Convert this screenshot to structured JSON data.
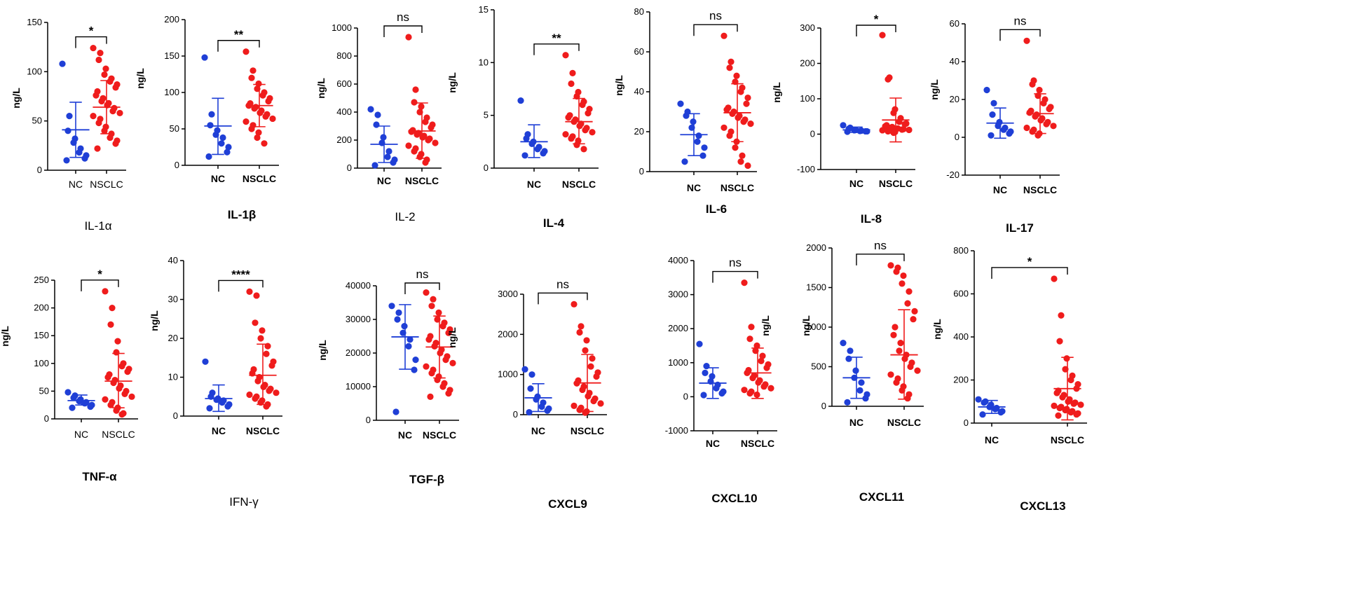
{
  "figure": {
    "colors": {
      "NC": "#1f3fd6",
      "NSCLC": "#ef1c1c",
      "axis": "#000000",
      "bracket": "#000000"
    }
  },
  "chart_data": [
    {
      "type": "scatter",
      "title": "IL-1α",
      "ylabel": "ng/L",
      "ylim": [
        0,
        150
      ],
      "yticks": [
        0,
        50,
        100,
        150
      ],
      "categories": [
        "NC",
        "NSCLC"
      ],
      "significance": "*",
      "series": [
        {
          "name": "NC",
          "values": [
            108,
            55,
            40,
            32,
            28,
            22,
            18,
            15,
            12,
            10
          ],
          "mean": 41,
          "sd_low": 13,
          "sd_high": 69
        },
        {
          "name": "NSCLC",
          "values": [
            124,
            119,
            112,
            103,
            97,
            93,
            90,
            87,
            84,
            80,
            76,
            73,
            70,
            68,
            66,
            63,
            60,
            58,
            55,
            52,
            48,
            44,
            40,
            37,
            33,
            30,
            27,
            22
          ],
          "mean": 64,
          "sd_low": 37,
          "sd_high": 91
        }
      ]
    },
    {
      "type": "scatter",
      "title": "IL-1β",
      "ylabel": "ng/L",
      "ylim": [
        0,
        200
      ],
      "yticks": [
        0,
        50,
        100,
        150,
        200
      ],
      "categories": [
        "NC",
        "NSCLC"
      ],
      "significance": "**",
      "series": [
        {
          "name": "NC",
          "values": [
            148,
            70,
            55,
            48,
            42,
            38,
            30,
            25,
            18,
            12
          ],
          "mean": 54,
          "sd_low": 15,
          "sd_high": 92
        },
        {
          "name": "NSCLC",
          "values": [
            156,
            130,
            120,
            112,
            105,
            100,
            96,
            92,
            88,
            85,
            82,
            80,
            78,
            75,
            72,
            70,
            67,
            64,
            60,
            55,
            50,
            45,
            38,
            30
          ],
          "mean": 82,
          "sd_low": 53,
          "sd_high": 111
        }
      ]
    },
    {
      "type": "scatter",
      "title": "IL-2",
      "ylabel": "ng/L",
      "ylim": [
        0,
        1000
      ],
      "yticks": [
        0,
        200,
        400,
        600,
        800,
        1000
      ],
      "categories": [
        "NC",
        "NSCLC"
      ],
      "significance": "ns",
      "series": [
        {
          "name": "NC",
          "values": [
            420,
            380,
            310,
            220,
            180,
            120,
            80,
            60,
            40,
            20
          ],
          "mean": 170,
          "sd_low": 40,
          "sd_high": 300
        },
        {
          "name": "NSCLC",
          "values": [
            935,
            560,
            470,
            440,
            400,
            360,
            330,
            310,
            290,
            270,
            260,
            250,
            240,
            230,
            220,
            210,
            200,
            180,
            160,
            140,
            120,
            100,
            80,
            60,
            40
          ],
          "mean": 265,
          "sd_low": 70,
          "sd_high": 465
        }
      ]
    },
    {
      "type": "scatter",
      "title": "IL-4",
      "ylabel": "ng/L",
      "ylim": [
        0,
        15
      ],
      "yticks": [
        0,
        5,
        10,
        15
      ],
      "categories": [
        "NC",
        "NSCLC"
      ],
      "significance": "**",
      "series": [
        {
          "name": "NC",
          "values": [
            6.4,
            3.2,
            2.8,
            2.5,
            2.3,
            2.0,
            1.8,
            1.6,
            1.4,
            1.2
          ],
          "mean": 2.5,
          "sd_low": 1.0,
          "sd_high": 4.1
        },
        {
          "name": "NSCLC",
          "values": [
            10.7,
            9.0,
            8.0,
            7.2,
            6.8,
            6.3,
            6.0,
            5.6,
            5.2,
            5.0,
            4.8,
            4.6,
            4.4,
            4.2,
            4.0,
            3.8,
            3.6,
            3.4,
            3.2,
            3.0,
            2.8,
            2.6,
            2.2,
            1.8
          ],
          "mean": 4.4,
          "sd_low": 2.3,
          "sd_high": 6.6
        }
      ]
    },
    {
      "type": "scatter",
      "title": "IL-6",
      "ylabel": "ng/L",
      "ylim": [
        0,
        80
      ],
      "yticks": [
        0,
        20,
        40,
        60,
        80
      ],
      "categories": [
        "NC",
        "NSCLC"
      ],
      "significance": "ns",
      "series": [
        {
          "name": "NC",
          "values": [
            34,
            30,
            28,
            25,
            22,
            18,
            15,
            12,
            8,
            5
          ],
          "mean": 18.5,
          "sd_low": 8,
          "sd_high": 29
        },
        {
          "name": "NSCLC",
          "values": [
            68,
            55,
            52,
            48,
            45,
            42,
            40,
            37,
            34,
            32,
            31,
            30,
            29,
            28,
            27,
            26,
            25,
            24,
            22,
            20,
            18,
            15,
            12,
            8,
            5,
            3
          ],
          "mean": 29.5,
          "sd_low": 15,
          "sd_high": 44
        }
      ]
    },
    {
      "type": "scatter",
      "title": "IL-8",
      "ylabel": "ng/L",
      "ylim": [
        -100,
        300
      ],
      "yticks": [
        -100,
        0,
        100,
        200,
        300
      ],
      "categories": [
        "NC",
        "NSCLC"
      ],
      "significance": "*",
      "series": [
        {
          "name": "NC",
          "values": [
            25,
            18,
            15,
            12,
            11,
            10,
            9,
            8,
            8,
            7
          ],
          "mean": 12,
          "sd_low": 5,
          "sd_high": 20
        },
        {
          "name": "NSCLC",
          "values": [
            280,
            160,
            155,
            70,
            60,
            45,
            35,
            30,
            28,
            25,
            22,
            20,
            18,
            16,
            15,
            14,
            13,
            12,
            11,
            10,
            8,
            6,
            4
          ],
          "mean": 40,
          "sd_low": -22,
          "sd_high": 102
        }
      ]
    },
    {
      "type": "scatter",
      "title": "IL-17",
      "ylabel": "ng/L",
      "ylim": [
        -20,
        60
      ],
      "yticks": [
        -20,
        0,
        20,
        40,
        60
      ],
      "categories": [
        "NC",
        "NSCLC"
      ],
      "significance": "ns",
      "series": [
        {
          "name": "NC",
          "values": [
            25,
            18,
            12,
            8,
            6,
            5,
            4,
            3,
            2,
            1
          ],
          "mean": 7.5,
          "sd_low": -0.5,
          "sd_high": 15.5
        },
        {
          "name": "NSCLC",
          "values": [
            51,
            30,
            28,
            25,
            22,
            20,
            18,
            16,
            15,
            14,
            13,
            12,
            11,
            10,
            9,
            8,
            7,
            6,
            5,
            4,
            3,
            2,
            1
          ],
          "mean": 12.5,
          "sd_low": 2,
          "sd_high": 23
        }
      ]
    },
    {
      "type": "scatter",
      "title": "TNF-α",
      "ylabel": "ng/L",
      "ylim": [
        0,
        250
      ],
      "yticks": [
        0,
        50,
        100,
        150,
        200,
        250
      ],
      "categories": [
        "NC",
        "NSCLC"
      ],
      "significance": "*",
      "series": [
        {
          "name": "NC",
          "values": [
            48,
            42,
            38,
            35,
            32,
            30,
            28,
            25,
            22,
            20
          ],
          "mean": 33,
          "sd_low": 25,
          "sd_high": 43
        },
        {
          "name": "NSCLC",
          "values": [
            230,
            200,
            170,
            140,
            120,
            100,
            95,
            90,
            85,
            80,
            75,
            70,
            65,
            60,
            55,
            50,
            45,
            40,
            35,
            30,
            25,
            20,
            15,
            10,
            8
          ],
          "mean": 68,
          "sd_low": 20,
          "sd_high": 118
        }
      ]
    },
    {
      "type": "scatter",
      "title": "IFN-γ",
      "ylabel": "ng/L",
      "ylim": [
        0,
        40
      ],
      "yticks": [
        0,
        10,
        20,
        30,
        40
      ],
      "categories": [
        "NC",
        "NSCLC"
      ],
      "significance": "****",
      "series": [
        {
          "name": "NC",
          "values": [
            14,
            6,
            5,
            4.5,
            4.2,
            4,
            3.5,
            3,
            2.5,
            2
          ],
          "mean": 4.5,
          "sd_low": 1.2,
          "sd_high": 8
        },
        {
          "name": "NSCLC",
          "values": [
            32,
            31,
            24,
            22,
            20,
            18,
            16,
            14,
            13,
            12,
            11,
            10,
            9,
            8,
            7.5,
            7,
            6.5,
            6,
            5.5,
            5,
            4.5,
            4,
            3.5,
            3,
            2.5
          ],
          "mean": 10.5,
          "sd_low": 3,
          "sd_high": 18.5
        }
      ]
    },
    {
      "type": "scatter",
      "title": "TGF-β",
      "ylabel": "ng/L",
      "ylim": [
        0,
        40000
      ],
      "yticks": [
        0,
        10000,
        20000,
        30000,
        40000
      ],
      "categories": [
        "NC",
        "NSCLC"
      ],
      "significance": "ns",
      "series": [
        {
          "name": "NC",
          "values": [
            34000,
            32000,
            30000,
            28000,
            26000,
            24000,
            22000,
            18000,
            15000,
            2500
          ],
          "mean": 24800,
          "sd_low": 15200,
          "sd_high": 34400
        },
        {
          "name": "NSCLC",
          "values": [
            38000,
            36000,
            34000,
            32000,
            30000,
            29000,
            28000,
            27000,
            26000,
            25000,
            24000,
            23000,
            22000,
            21000,
            20000,
            19000,
            18000,
            17000,
            16000,
            15000,
            14000,
            13000,
            12000,
            11000,
            10000,
            9000,
            8000,
            7000
          ],
          "mean": 21800,
          "sd_low": 12600,
          "sd_high": 31000
        }
      ]
    },
    {
      "type": "scatter",
      "title": "CXCL9",
      "ylabel": "ng/L",
      "ylim": [
        0,
        3000
      ],
      "yticks": [
        0,
        1000,
        2000,
        3000
      ],
      "categories": [
        "NC",
        "NSCLC"
      ],
      "significance": "ns",
      "series": [
        {
          "name": "NC",
          "values": [
            1130,
            1000,
            650,
            450,
            380,
            300,
            200,
            150,
            100,
            60
          ],
          "mean": 420,
          "sd_low": 80,
          "sd_high": 770
        },
        {
          "name": "NSCLC",
          "values": [
            2750,
            2200,
            2050,
            1850,
            1600,
            1400,
            1200,
            1050,
            950,
            850,
            780,
            700,
            620,
            540,
            460,
            400,
            340,
            280,
            220,
            170,
            120,
            80,
            50
          ],
          "mean": 790,
          "sd_low": 80,
          "sd_high": 1500
        }
      ]
    },
    {
      "type": "scatter",
      "title": "CXCL10",
      "ylabel": "ng/L",
      "ylim": [
        -1000,
        4000
      ],
      "yticks": [
        -1000,
        0,
        1000,
        2000,
        3000,
        4000
      ],
      "categories": [
        "NC",
        "NSCLC"
      ],
      "significance": "ns",
      "series": [
        {
          "name": "NC",
          "values": [
            1550,
            900,
            700,
            600,
            450,
            350,
            250,
            150,
            100,
            50
          ],
          "mean": 400,
          "sd_low": -50,
          "sd_high": 850
        },
        {
          "name": "NSCLC",
          "values": [
            3350,
            2050,
            1700,
            1500,
            1350,
            1200,
            1050,
            950,
            850,
            780,
            700,
            620,
            550,
            480,
            420,
            360,
            300,
            250,
            200,
            150,
            100,
            60
          ],
          "mean": 700,
          "sd_low": -50,
          "sd_high": 1430
        }
      ]
    },
    {
      "type": "scatter",
      "title": "CXCL11",
      "ylabel": "ng/L",
      "ylim": [
        0,
        2000
      ],
      "yticks": [
        0,
        500,
        1000,
        1500,
        2000
      ],
      "categories": [
        "NC",
        "NSCLC"
      ],
      "significance": "ns",
      "series": [
        {
          "name": "NC",
          "values": [
            800,
            700,
            600,
            450,
            360,
            300,
            200,
            150,
            100,
            50
          ],
          "mean": 360,
          "sd_low": 100,
          "sd_high": 620
        },
        {
          "name": "NSCLC",
          "values": [
            1780,
            1750,
            1700,
            1650,
            1550,
            1450,
            1300,
            1200,
            1100,
            1000,
            900,
            800,
            700,
            650,
            600,
            550,
            500,
            450,
            400,
            350,
            300,
            250,
            200,
            150,
            100
          ],
          "mean": 650,
          "sd_low": 90,
          "sd_high": 1220
        }
      ]
    },
    {
      "type": "scatter",
      "title": "CXCL13",
      "ylabel": "ng/L",
      "ylim": [
        0,
        800
      ],
      "yticks": [
        0,
        200,
        400,
        600,
        800
      ],
      "categories": [
        "NC",
        "NSCLC"
      ],
      "significance": "*",
      "series": [
        {
          "name": "NC",
          "values": [
            110,
            100,
            95,
            85,
            75,
            70,
            65,
            55,
            50,
            40
          ],
          "mean": 75,
          "sd_low": 45,
          "sd_high": 105
        },
        {
          "name": "NSCLC",
          "values": [
            670,
            500,
            380,
            300,
            250,
            220,
            200,
            180,
            160,
            150,
            140,
            130,
            120,
            110,
            100,
            95,
            90,
            85,
            80,
            75,
            70,
            65,
            60,
            55,
            50,
            45,
            40,
            35
          ],
          "mean": 160,
          "sd_low": 15,
          "sd_high": 305
        }
      ]
    }
  ]
}
